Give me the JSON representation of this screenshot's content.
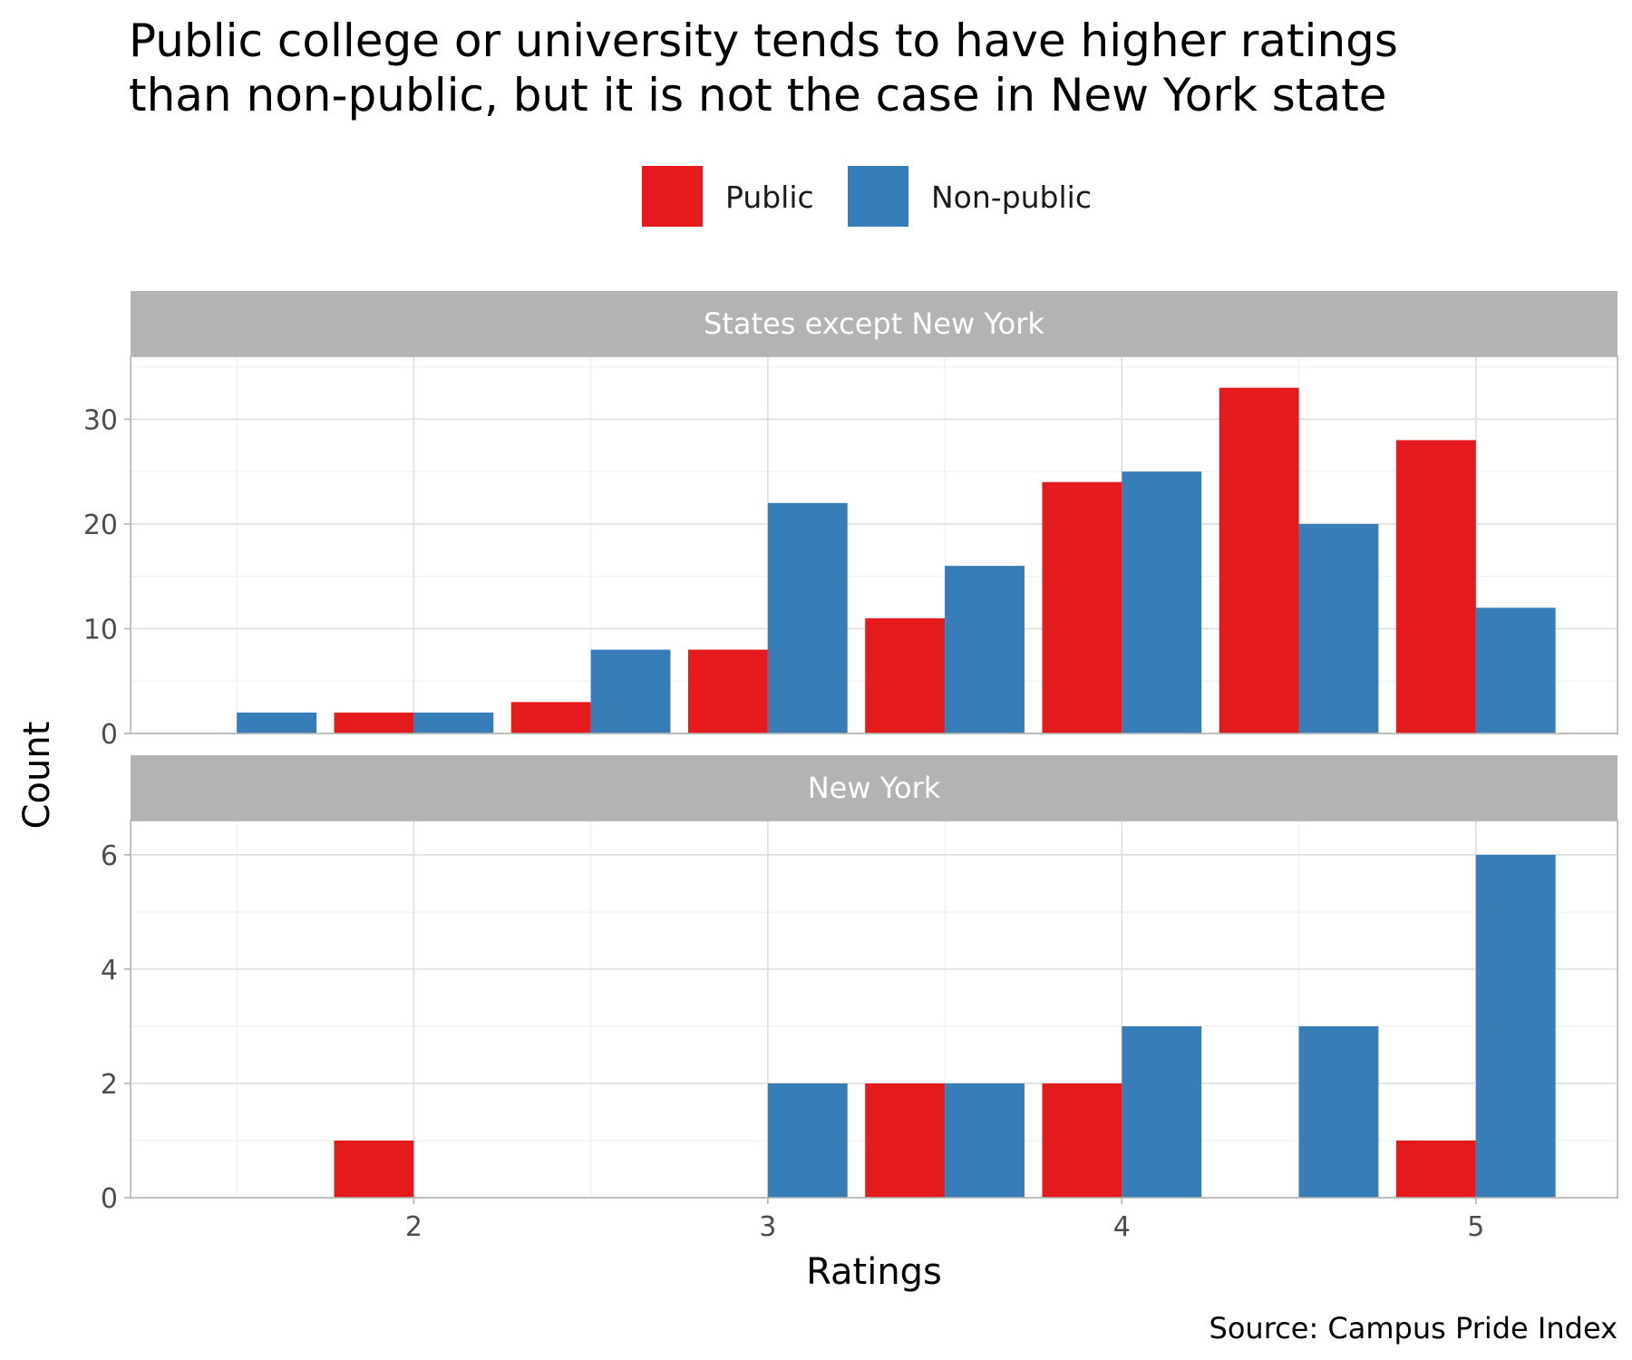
{
  "chart_data": {
    "type": "bar",
    "title": "Public college or university tends to have higher ratings than non-public, but it is not the case in New York state",
    "title_lines": [
      "Public college or university tends to have higher ratings",
      "than non-public, but it is not the case in New York state"
    ],
    "xlabel": "Ratings",
    "ylabel": "Count",
    "caption": "Source: Campus Pride Index",
    "legend_position": "top",
    "grid": true,
    "x_ticks": [
      2,
      3,
      4,
      5
    ],
    "xlim": [
      1.2,
      5.4
    ],
    "bins": [
      1.5,
      2,
      2.5,
      3,
      3.5,
      4,
      4.5,
      5
    ],
    "series": [
      {
        "name": "Public",
        "color": "#E41A1C"
      },
      {
        "name": "Non-public",
        "color": "#377EB8"
      }
    ],
    "panels": [
      {
        "label": "States except New York",
        "ylim": [
          0,
          36
        ],
        "y_ticks": [
          0,
          10,
          20,
          30
        ],
        "values": {
          "Public": [
            0,
            2,
            3,
            8,
            11,
            24,
            33,
            28
          ],
          "Non-public": [
            2,
            2,
            8,
            22,
            16,
            25,
            20,
            12
          ]
        }
      },
      {
        "label": "New York",
        "ylim": [
          0,
          6.6
        ],
        "y_ticks": [
          0,
          2,
          4,
          6
        ],
        "values": {
          "Public": [
            0,
            1,
            0,
            0,
            2,
            2,
            0,
            1
          ],
          "Non-public": [
            0,
            0,
            0,
            2,
            2,
            3,
            3,
            6
          ]
        }
      }
    ]
  }
}
